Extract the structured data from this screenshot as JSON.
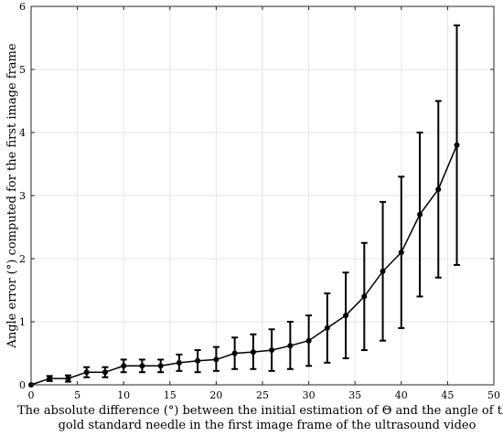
{
  "chart_data": {
    "type": "line",
    "title": "",
    "xlabel_lines": [
      "The absolute difference (°) between the initial estimation of Θ and the angle of the",
      "gold standard needle in the first image frame of the ultrasound video"
    ],
    "ylabel": "Angle error (°) computed for the first image frame",
    "xlim": [
      0,
      50
    ],
    "ylim": [
      0,
      6
    ],
    "xticks": [
      0,
      5,
      10,
      15,
      20,
      25,
      30,
      35,
      40,
      45,
      50
    ],
    "yticks": [
      0,
      1,
      2,
      3,
      4,
      5,
      6
    ],
    "grid": true,
    "legend": "none",
    "series": [
      {
        "x": [
          0,
          2,
          4,
          6,
          8,
          10,
          12,
          14,
          16,
          18,
          20,
          22,
          24,
          26,
          28,
          30,
          32,
          34,
          36,
          38,
          40,
          42,
          44,
          46
        ],
        "y": [
          0,
          0.1,
          0.1,
          0.2,
          0.2,
          0.3,
          0.3,
          0.3,
          0.35,
          0.38,
          0.4,
          0.5,
          0.52,
          0.55,
          0.62,
          0.7,
          0.9,
          1.1,
          1.4,
          1.8,
          2.1,
          2.7,
          3.1,
          3.8
        ],
        "err_low": [
          0,
          0.06,
          0.05,
          0.12,
          0.12,
          0.2,
          0.2,
          0.2,
          0.22,
          0.2,
          0.22,
          0.25,
          0.25,
          0.22,
          0.25,
          0.3,
          0.35,
          0.42,
          0.55,
          0.7,
          0.9,
          1.4,
          1.7,
          1.9
        ],
        "err_high": [
          0,
          0.14,
          0.15,
          0.28,
          0.28,
          0.4,
          0.4,
          0.4,
          0.48,
          0.55,
          0.6,
          0.75,
          0.8,
          0.88,
          1.0,
          1.1,
          1.45,
          1.78,
          2.25,
          2.9,
          3.3,
          4.0,
          4.5,
          5.7
        ],
        "color": "#000000"
      }
    ]
  }
}
